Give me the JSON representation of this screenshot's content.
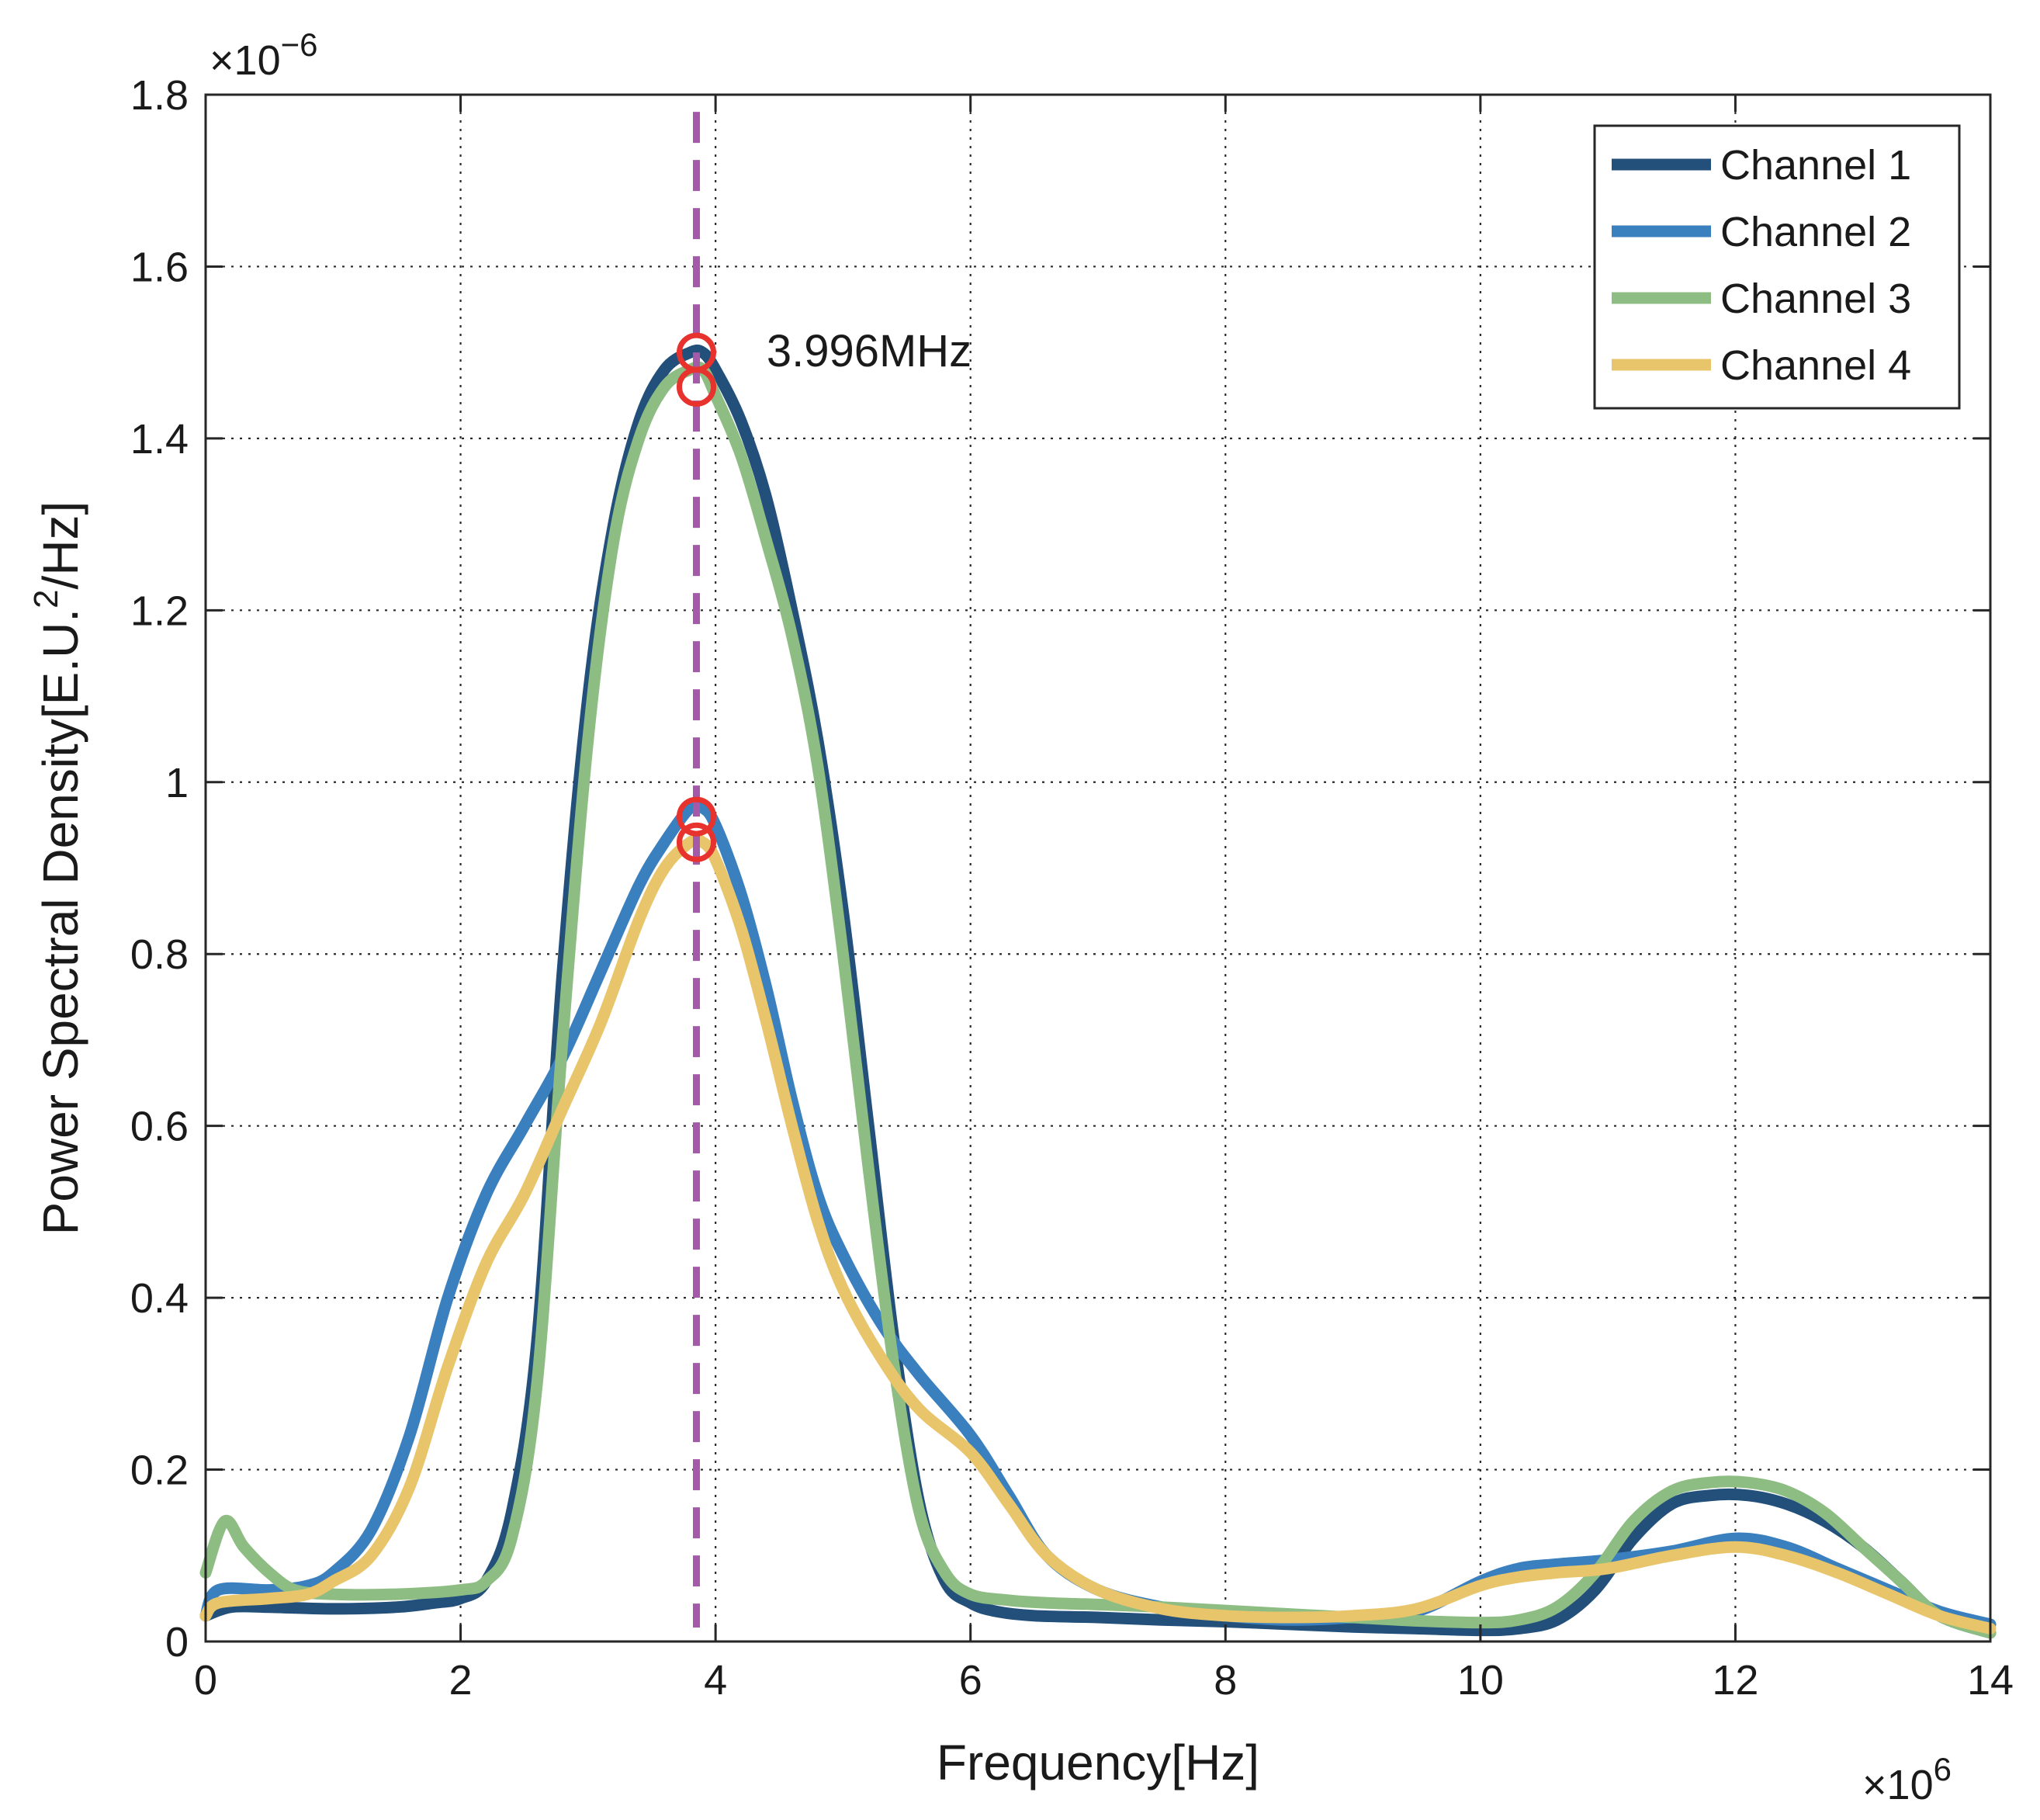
{
  "chart_data": {
    "type": "line",
    "title": "",
    "xlabel": "Frequency[Hz]",
    "ylabel": "Power Spectral Density[E.U.^2/Hz]",
    "ylabel_parts": {
      "pre": "Power Spectral Density[E.U.",
      "sup": "2",
      "post": "/Hz]"
    },
    "x_exponent": {
      "base": "×10",
      "power": "6"
    },
    "y_exponent": {
      "base": "×10",
      "power": "−6"
    },
    "xlim": [
      0,
      14
    ],
    "ylim": [
      0,
      1.8
    ],
    "x_ticks": [
      0,
      2,
      4,
      6,
      8,
      10,
      12,
      14
    ],
    "x_tick_labels": [
      "0",
      "2",
      "4",
      "6",
      "8",
      "10",
      "12",
      "14"
    ],
    "y_ticks": [
      0,
      0.2,
      0.4,
      0.6,
      0.8,
      1,
      1.2,
      1.4,
      1.6,
      1.8
    ],
    "y_tick_labels": [
      "0",
      "0.2",
      "0.4",
      "0.6",
      "0.8",
      "1",
      "1.2",
      "1.4",
      "1.6",
      "1.8"
    ],
    "grid": true,
    "legend_position": "top-right",
    "series": [
      {
        "name": "Channel 1",
        "color": "#22507a",
        "x": [
          0,
          0.2,
          0.5,
          1,
          1.5,
          1.8,
          2,
          2.2,
          2.4,
          2.6,
          2.8,
          3.0,
          3.2,
          3.4,
          3.6,
          3.8,
          3.9,
          4.0,
          4.2,
          4.4,
          4.6,
          4.8,
          5.0,
          5.2,
          5.4,
          5.6,
          5.8,
          6.0,
          6.2,
          6.5,
          7,
          7.5,
          8,
          8.5,
          9,
          9.5,
          10,
          10.3,
          10.6,
          10.9,
          11.2,
          11.5,
          11.8,
          12.1,
          12.4,
          12.7,
          13.0,
          13.3,
          13.6,
          14
        ],
        "values": [
          0.03,
          0.04,
          0.04,
          0.038,
          0.04,
          0.045,
          0.05,
          0.07,
          0.15,
          0.35,
          0.78,
          1.1,
          1.3,
          1.42,
          1.48,
          1.5,
          1.5,
          1.48,
          1.42,
          1.33,
          1.2,
          1.05,
          0.85,
          0.6,
          0.35,
          0.16,
          0.07,
          0.045,
          0.035,
          0.03,
          0.028,
          0.025,
          0.023,
          0.02,
          0.017,
          0.015,
          0.013,
          0.015,
          0.025,
          0.06,
          0.12,
          0.16,
          0.17,
          0.17,
          0.16,
          0.14,
          0.11,
          0.07,
          0.03,
          0.01
        ]
      },
      {
        "name": "Channel 2",
        "color": "#3a7fbe",
        "x": [
          0,
          0.1,
          0.5,
          0.8,
          1.0,
          1.3,
          1.6,
          1.9,
          2.2,
          2.5,
          2.8,
          3.1,
          3.4,
          3.6,
          3.8,
          3.9,
          4.0,
          4.2,
          4.4,
          4.6,
          4.8,
          5.0,
          5.3,
          5.6,
          6.0,
          6.3,
          6.6,
          7.0,
          7.5,
          8,
          8.5,
          9,
          9.5,
          10,
          10.3,
          10.6,
          11,
          11.5,
          12,
          12.4,
          12.8,
          13.2,
          13.6,
          14
        ],
        "values": [
          0.03,
          0.06,
          0.06,
          0.065,
          0.08,
          0.13,
          0.24,
          0.4,
          0.52,
          0.6,
          0.68,
          0.78,
          0.88,
          0.93,
          0.97,
          0.97,
          0.95,
          0.87,
          0.76,
          0.63,
          0.52,
          0.45,
          0.37,
          0.31,
          0.24,
          0.17,
          0.1,
          0.06,
          0.04,
          0.03,
          0.025,
          0.028,
          0.035,
          0.07,
          0.085,
          0.09,
          0.095,
          0.105,
          0.12,
          0.11,
          0.085,
          0.06,
          0.035,
          0.02
        ]
      },
      {
        "name": "Channel 3",
        "color": "#8dbd82",
        "x": [
          0,
          0.15,
          0.3,
          0.5,
          0.7,
          1.0,
          1.5,
          2.0,
          2.2,
          2.4,
          2.6,
          2.8,
          3.0,
          3.2,
          3.4,
          3.6,
          3.8,
          3.9,
          4.0,
          4.2,
          4.4,
          4.6,
          4.8,
          5.0,
          5.2,
          5.4,
          5.6,
          5.8,
          6.0,
          6.3,
          6.6,
          7,
          7.5,
          8,
          8.5,
          9,
          9.5,
          10,
          10.3,
          10.6,
          10.9,
          11.2,
          11.5,
          11.8,
          12.1,
          12.4,
          12.7,
          13.0,
          13.3,
          13.6,
          14
        ],
        "values": [
          0.08,
          0.14,
          0.11,
          0.08,
          0.06,
          0.055,
          0.055,
          0.06,
          0.07,
          0.12,
          0.3,
          0.7,
          1.05,
          1.28,
          1.4,
          1.46,
          1.48,
          1.48,
          1.45,
          1.38,
          1.28,
          1.17,
          1.02,
          0.8,
          0.55,
          0.32,
          0.15,
          0.08,
          0.055,
          0.048,
          0.045,
          0.043,
          0.04,
          0.036,
          0.032,
          0.028,
          0.024,
          0.022,
          0.025,
          0.04,
          0.08,
          0.14,
          0.175,
          0.185,
          0.185,
          0.175,
          0.15,
          0.11,
          0.07,
          0.03,
          0.01
        ]
      },
      {
        "name": "Channel 4",
        "color": "#e8c56a",
        "x": [
          0,
          0.1,
          0.5,
          0.8,
          1.0,
          1.3,
          1.6,
          1.9,
          2.2,
          2.5,
          2.8,
          3.1,
          3.4,
          3.6,
          3.8,
          3.9,
          4.0,
          4.2,
          4.4,
          4.6,
          4.8,
          5.0,
          5.3,
          5.6,
          6.0,
          6.3,
          6.6,
          7.0,
          7.5,
          8,
          8.5,
          9,
          9.5,
          10,
          10.3,
          10.6,
          11,
          11.5,
          12,
          12.4,
          12.8,
          13.2,
          13.6,
          14
        ],
        "values": [
          0.03,
          0.045,
          0.05,
          0.055,
          0.07,
          0.1,
          0.18,
          0.32,
          0.44,
          0.52,
          0.62,
          0.72,
          0.84,
          0.9,
          0.93,
          0.93,
          0.91,
          0.83,
          0.72,
          0.6,
          0.49,
          0.41,
          0.33,
          0.27,
          0.22,
          0.16,
          0.1,
          0.06,
          0.038,
          0.03,
          0.028,
          0.03,
          0.038,
          0.065,
          0.075,
          0.08,
          0.085,
          0.1,
          0.11,
          0.1,
          0.08,
          0.055,
          0.03,
          0.015
        ]
      }
    ],
    "peak_marker_x": 3.85,
    "peak_markers": [
      {
        "series": "Channel 1",
        "x": 3.85,
        "y": 1.5
      },
      {
        "series": "Channel 3",
        "x": 3.85,
        "y": 1.46
      },
      {
        "series": "Channel 2",
        "x": 3.85,
        "y": 0.96
      },
      {
        "series": "Channel 4",
        "x": 3.85,
        "y": 0.93
      }
    ],
    "peak_line_color": "#a55aa9",
    "peak_marker_color": "#e8322d",
    "annotations": [
      {
        "text": "3.996MHz",
        "x": 4.4,
        "y": 1.5
      }
    ]
  }
}
